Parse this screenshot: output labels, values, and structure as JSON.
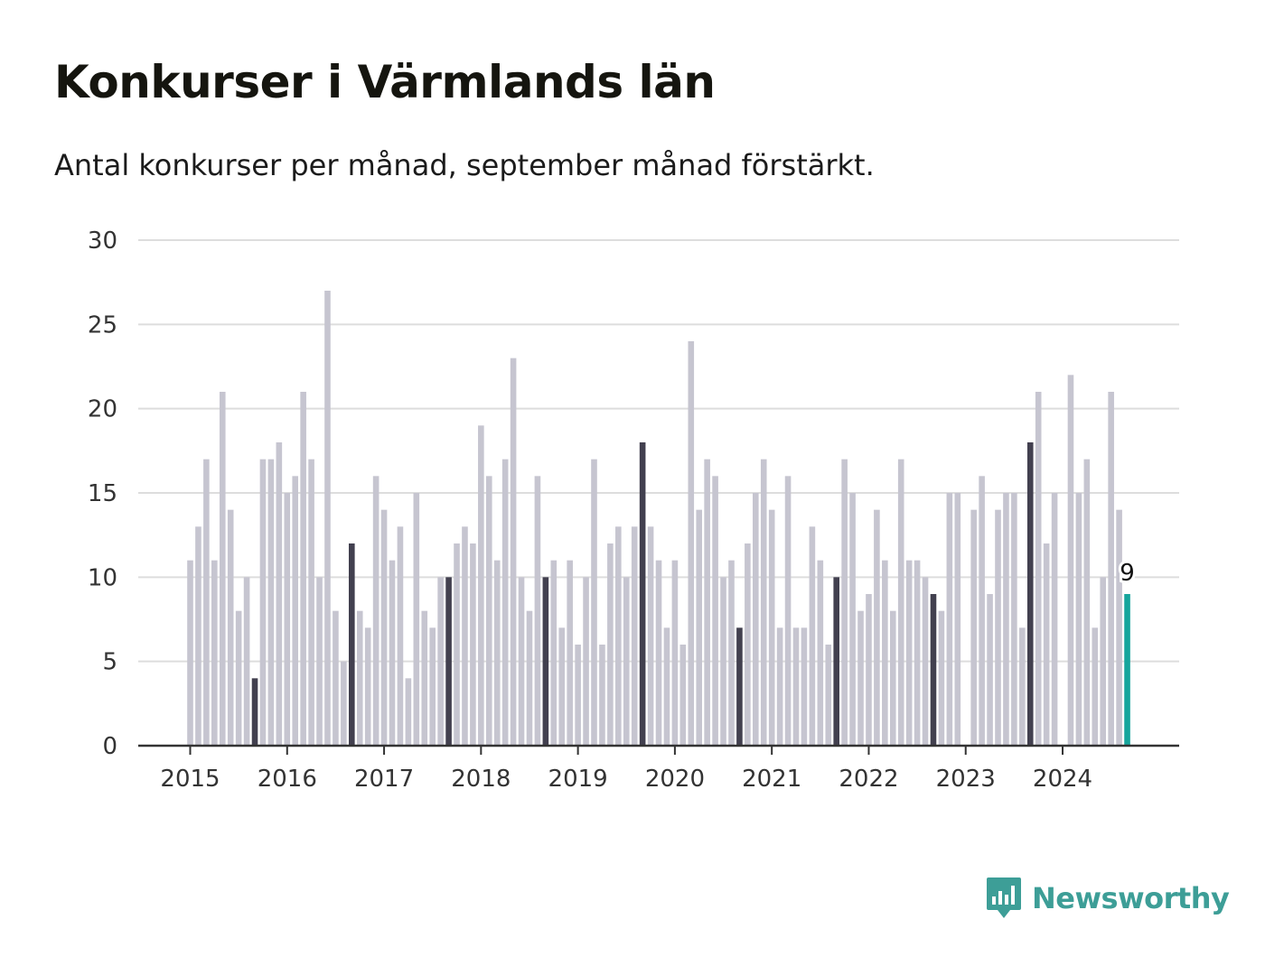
{
  "header": {
    "title": "Konkurser i Värmlands län",
    "subtitle": "Antal konkurser per månad, september månad förstärkt."
  },
  "brand": {
    "name": "Newsworthy",
    "icon": "newsworthy-logo-icon",
    "color": "#3d9e97"
  },
  "colors": {
    "bar": "#c6c5d0",
    "highlight": "#42404f",
    "latest": "#16a59c",
    "grid": "#dddddd",
    "axis": "#333333"
  },
  "chart_data": {
    "type": "bar",
    "title": "Konkurser i Värmlands län",
    "subtitle": "Antal konkurser per månad, september månad förstärkt.",
    "xlabel": "",
    "ylabel": "",
    "ylim": [
      0,
      30
    ],
    "yticks": [
      0,
      5,
      10,
      15,
      20,
      25,
      30
    ],
    "xticks": [
      "2015",
      "2016",
      "2017",
      "2018",
      "2019",
      "2020",
      "2021",
      "2022",
      "2023",
      "2024"
    ],
    "start": "2015-01",
    "highlight_month": "september",
    "grid": true,
    "legend": "none",
    "values": [
      11,
      13,
      17,
      11,
      21,
      14,
      8,
      10,
      4,
      17,
      17,
      18,
      15,
      16,
      21,
      17,
      10,
      27,
      8,
      5,
      12,
      8,
      7,
      16,
      14,
      11,
      13,
      4,
      15,
      8,
      7,
      10,
      10,
      12,
      13,
      12,
      19,
      16,
      11,
      17,
      23,
      10,
      8,
      16,
      10,
      11,
      7,
      11,
      6,
      10,
      17,
      6,
      12,
      13,
      10,
      13,
      18,
      13,
      11,
      7,
      11,
      6,
      24,
      14,
      17,
      16,
      10,
      11,
      7,
      12,
      15,
      17,
      14,
      7,
      16,
      7,
      7,
      13,
      11,
      6,
      10,
      17,
      15,
      8,
      9,
      14,
      11,
      8,
      17,
      11,
      11,
      10,
      9,
      8,
      15,
      15,
      0,
      14,
      16,
      9,
      14,
      15,
      15,
      7,
      18,
      21,
      12,
      15,
      0,
      22,
      15,
      17,
      7,
      10,
      21,
      14,
      9
    ],
    "annotations": [
      {
        "index": 116,
        "text": "9"
      }
    ]
  }
}
